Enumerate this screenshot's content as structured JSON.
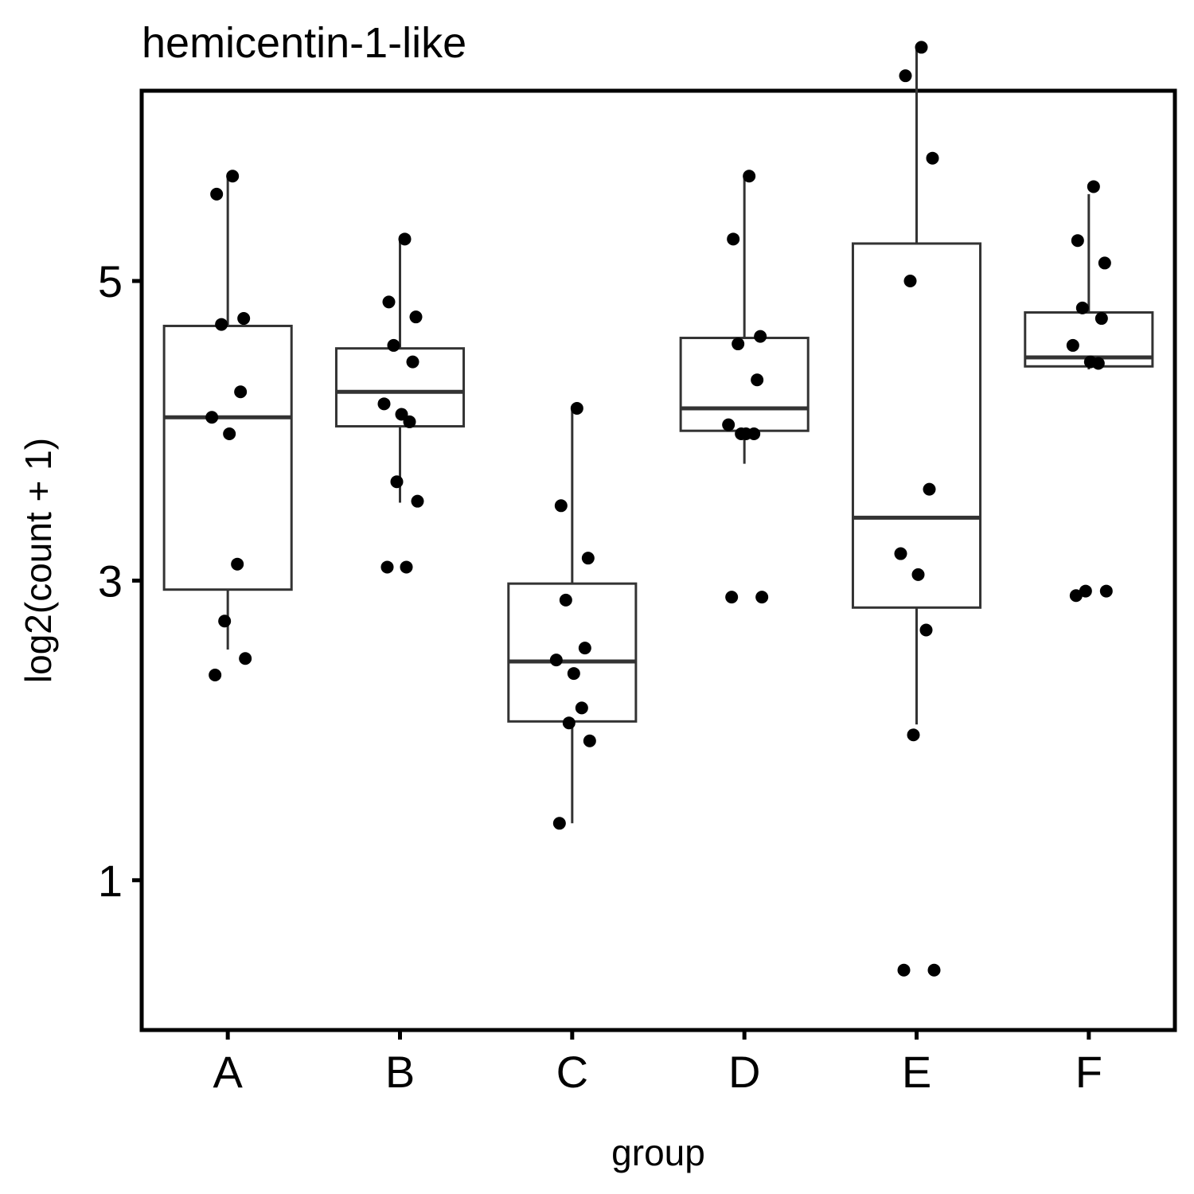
{
  "chart_data": {
    "type": "boxplot",
    "title": "hemicentin-1-like",
    "xlabel": "group",
    "ylabel": "log2(count + 1)",
    "ylim": [
      0.0,
      6.27
    ],
    "y_ticks": [
      1,
      3,
      5
    ],
    "grid": false,
    "legend": "none",
    "colors": {
      "box_stroke": "#333333",
      "point": "#000000",
      "frame": "#000000"
    },
    "categories": [
      "A",
      "B",
      "C",
      "D",
      "E",
      "F"
    ],
    "boxes": [
      {
        "group": "A",
        "whisker_low": 2.54,
        "q1": 2.94,
        "median": 4.09,
        "q3": 4.7,
        "whisker_high": 5.69
      },
      {
        "group": "B",
        "whisker_low": 3.52,
        "q1": 4.03,
        "median": 4.26,
        "q3": 4.55,
        "whisker_high": 5.27
      },
      {
        "group": "C",
        "whisker_low": 1.38,
        "q1": 2.06,
        "median": 2.46,
        "q3": 2.98,
        "whisker_high": 4.15
      },
      {
        "group": "D",
        "whisker_low": 3.78,
        "q1": 4.0,
        "median": 4.15,
        "q3": 4.62,
        "whisker_high": 5.69
      },
      {
        "group": "E",
        "whisker_low": 2.04,
        "q1": 2.82,
        "median": 3.42,
        "q3": 5.25,
        "whisker_high": 6.56
      },
      {
        "group": "F",
        "whisker_low": 4.41,
        "q1": 4.43,
        "median": 4.49,
        "q3": 4.79,
        "whisker_high": 5.58
      }
    ],
    "points": [
      {
        "group": "A",
        "values": [
          5.7,
          5.58,
          4.75,
          4.71,
          4.26,
          4.09,
          3.98,
          3.11,
          2.73,
          2.48,
          2.37
        ]
      },
      {
        "group": "B",
        "values": [
          5.28,
          4.86,
          4.76,
          4.57,
          4.46,
          4.18,
          4.11,
          4.06,
          3.66,
          3.53,
          3.09,
          3.09
        ]
      },
      {
        "group": "C",
        "values": [
          4.15,
          3.5,
          3.15,
          2.87,
          2.55,
          2.47,
          2.38,
          2.15,
          2.05,
          1.93,
          1.38
        ]
      },
      {
        "group": "D",
        "values": [
          5.7,
          5.28,
          4.63,
          4.58,
          4.34,
          4.04,
          3.98,
          3.98,
          3.98,
          2.89,
          2.89
        ]
      },
      {
        "group": "E",
        "values": [
          6.56,
          6.37,
          5.82,
          5.0,
          3.61,
          3.18,
          3.04,
          2.67,
          1.97,
          0.4,
          0.4
        ]
      },
      {
        "group": "F",
        "values": [
          5.63,
          5.27,
          5.12,
          4.82,
          4.75,
          4.57,
          4.46,
          4.45,
          2.93,
          2.93,
          2.9
        ]
      }
    ]
  }
}
